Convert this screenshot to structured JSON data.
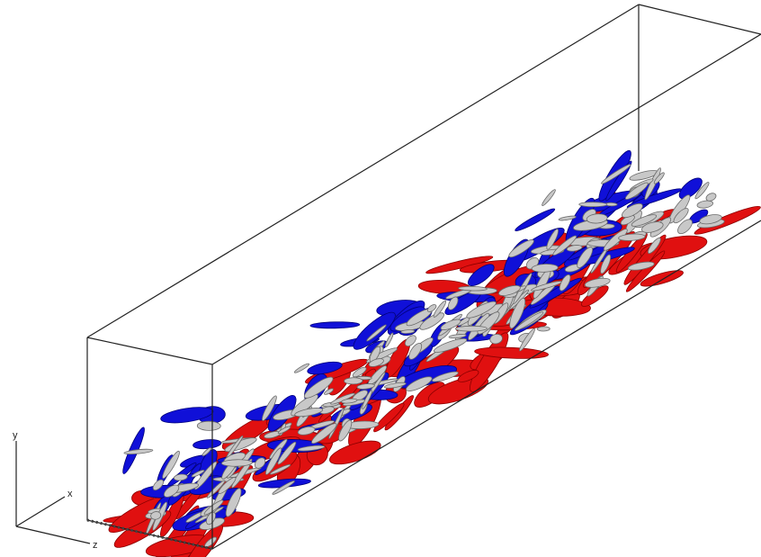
{
  "triad": {
    "labels": [
      "y",
      "x",
      "z"
    ]
  }
}
